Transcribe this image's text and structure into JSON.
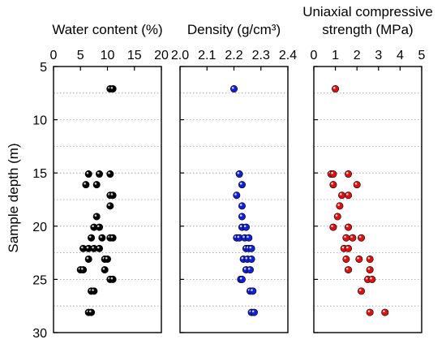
{
  "chart_data": {
    "type": "scatter",
    "ylabel": "Sample depth (m)",
    "y_axis": {
      "ylim": [
        5,
        30
      ],
      "inverted": true,
      "ticks": [
        5,
        10,
        15,
        20,
        25,
        30
      ],
      "minor_grid_step": 2.5
    },
    "panels": [
      {
        "id": "water",
        "title_lines": [
          "Water content (%)"
        ],
        "xlim": [
          0,
          20
        ],
        "xticks": [
          "0",
          "5",
          "10",
          "15",
          "20"
        ],
        "color": "#000000",
        "points": [
          {
            "x": 10.5,
            "y": 7.1
          },
          {
            "x": 11.0,
            "y": 7.1
          },
          {
            "x": 6.5,
            "y": 15.1
          },
          {
            "x": 8.5,
            "y": 15.1
          },
          {
            "x": 10.5,
            "y": 15.1
          },
          {
            "x": 6.0,
            "y": 16.1
          },
          {
            "x": 8.0,
            "y": 16.1
          },
          {
            "x": 10.5,
            "y": 17.1
          },
          {
            "x": 11.0,
            "y": 17.1
          },
          {
            "x": 10.5,
            "y": 18.1
          },
          {
            "x": 8.0,
            "y": 19.1
          },
          {
            "x": 7.5,
            "y": 20.1
          },
          {
            "x": 8.5,
            "y": 20.1
          },
          {
            "x": 7.0,
            "y": 21.1
          },
          {
            "x": 9.0,
            "y": 21.1
          },
          {
            "x": 10.5,
            "y": 21.1
          },
          {
            "x": 11.0,
            "y": 21.1
          },
          {
            "x": 5.5,
            "y": 22.1
          },
          {
            "x": 6.5,
            "y": 22.1
          },
          {
            "x": 7.5,
            "y": 22.1
          },
          {
            "x": 8.5,
            "y": 22.1
          },
          {
            "x": 6.5,
            "y": 23.1
          },
          {
            "x": 9.5,
            "y": 23.1
          },
          {
            "x": 10.0,
            "y": 23.1
          },
          {
            "x": 5.0,
            "y": 24.1
          },
          {
            "x": 5.5,
            "y": 24.1
          },
          {
            "x": 9.5,
            "y": 24.1
          },
          {
            "x": 10.5,
            "y": 25.0
          },
          {
            "x": 11.0,
            "y": 25.0
          },
          {
            "x": 7.0,
            "y": 26.1
          },
          {
            "x": 7.5,
            "y": 26.1
          },
          {
            "x": 6.5,
            "y": 28.1
          },
          {
            "x": 7.0,
            "y": 28.1
          }
        ]
      },
      {
        "id": "density",
        "title_lines": [
          "Density (g/cm³)"
        ],
        "xlim": [
          2.0,
          2.4
        ],
        "xticks": [
          "2.0",
          "2.1",
          "2.2",
          "2.3",
          "2.4"
        ],
        "color": "#1020d8",
        "points": [
          {
            "x": 2.2,
            "y": 7.1
          },
          {
            "x": 2.22,
            "y": 15.1
          },
          {
            "x": 2.23,
            "y": 16.1
          },
          {
            "x": 2.21,
            "y": 17.1
          },
          {
            "x": 2.23,
            "y": 18.1
          },
          {
            "x": 2.23,
            "y": 19.1
          },
          {
            "x": 2.23,
            "y": 20.1
          },
          {
            "x": 2.245,
            "y": 20.1
          },
          {
            "x": 2.21,
            "y": 21.1
          },
          {
            "x": 2.22,
            "y": 21.1
          },
          {
            "x": 2.24,
            "y": 21.1
          },
          {
            "x": 2.255,
            "y": 21.1
          },
          {
            "x": 2.245,
            "y": 22.1
          },
          {
            "x": 2.255,
            "y": 22.1
          },
          {
            "x": 2.265,
            "y": 22.1
          },
          {
            "x": 2.235,
            "y": 23.1
          },
          {
            "x": 2.25,
            "y": 23.1
          },
          {
            "x": 2.265,
            "y": 23.1
          },
          {
            "x": 2.245,
            "y": 24.1
          },
          {
            "x": 2.26,
            "y": 24.1
          },
          {
            "x": 2.225,
            "y": 25.0
          },
          {
            "x": 2.23,
            "y": 25.0
          },
          {
            "x": 2.26,
            "y": 26.1
          },
          {
            "x": 2.27,
            "y": 26.1
          },
          {
            "x": 2.265,
            "y": 28.1
          },
          {
            "x": 2.275,
            "y": 28.1
          }
        ]
      },
      {
        "id": "ucs",
        "title_lines": [
          "Uniaxial compressive",
          "strength (MPa)"
        ],
        "xlim": [
          0,
          5
        ],
        "xticks": [
          "0",
          "1",
          "2",
          "3",
          "4",
          "5"
        ],
        "color": "#e01010",
        "points": [
          {
            "x": 1.0,
            "y": 7.1
          },
          {
            "x": 0.8,
            "y": 15.1
          },
          {
            "x": 0.9,
            "y": 15.1
          },
          {
            "x": 1.6,
            "y": 15.1
          },
          {
            "x": 0.9,
            "y": 16.1
          },
          {
            "x": 2.0,
            "y": 16.1
          },
          {
            "x": 1.3,
            "y": 17.1
          },
          {
            "x": 1.6,
            "y": 17.1
          },
          {
            "x": 1.2,
            "y": 18.1
          },
          {
            "x": 1.1,
            "y": 19.1
          },
          {
            "x": 0.9,
            "y": 20.1
          },
          {
            "x": 1.6,
            "y": 20.1
          },
          {
            "x": 1.5,
            "y": 21.1
          },
          {
            "x": 1.8,
            "y": 21.1
          },
          {
            "x": 2.2,
            "y": 21.1
          },
          {
            "x": 1.4,
            "y": 22.1
          },
          {
            "x": 1.6,
            "y": 22.1
          },
          {
            "x": 1.5,
            "y": 23.1
          },
          {
            "x": 2.1,
            "y": 23.1
          },
          {
            "x": 2.6,
            "y": 23.1
          },
          {
            "x": 1.6,
            "y": 24.1
          },
          {
            "x": 2.6,
            "y": 24.1
          },
          {
            "x": 2.5,
            "y": 25.0
          },
          {
            "x": 2.7,
            "y": 25.0
          },
          {
            "x": 2.2,
            "y": 26.1
          },
          {
            "x": 2.6,
            "y": 28.1
          },
          {
            "x": 3.3,
            "y": 28.1
          }
        ]
      }
    ]
  }
}
